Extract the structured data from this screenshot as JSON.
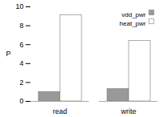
{
  "chart_data": {
    "type": "bar",
    "categories": [
      "read",
      "write"
    ],
    "series": [
      {
        "name": "vdd_pwr",
        "color": "#999999",
        "values": [
          1.0,
          1.3
        ]
      },
      {
        "name": "heat_pwr",
        "color": "#ffffff",
        "values": [
          9.1,
          6.4
        ]
      }
    ],
    "ylabel": "P",
    "ylim": [
      0,
      10
    ],
    "yticks": [
      0,
      2,
      4,
      6,
      8,
      10
    ],
    "legend": "upper right"
  }
}
